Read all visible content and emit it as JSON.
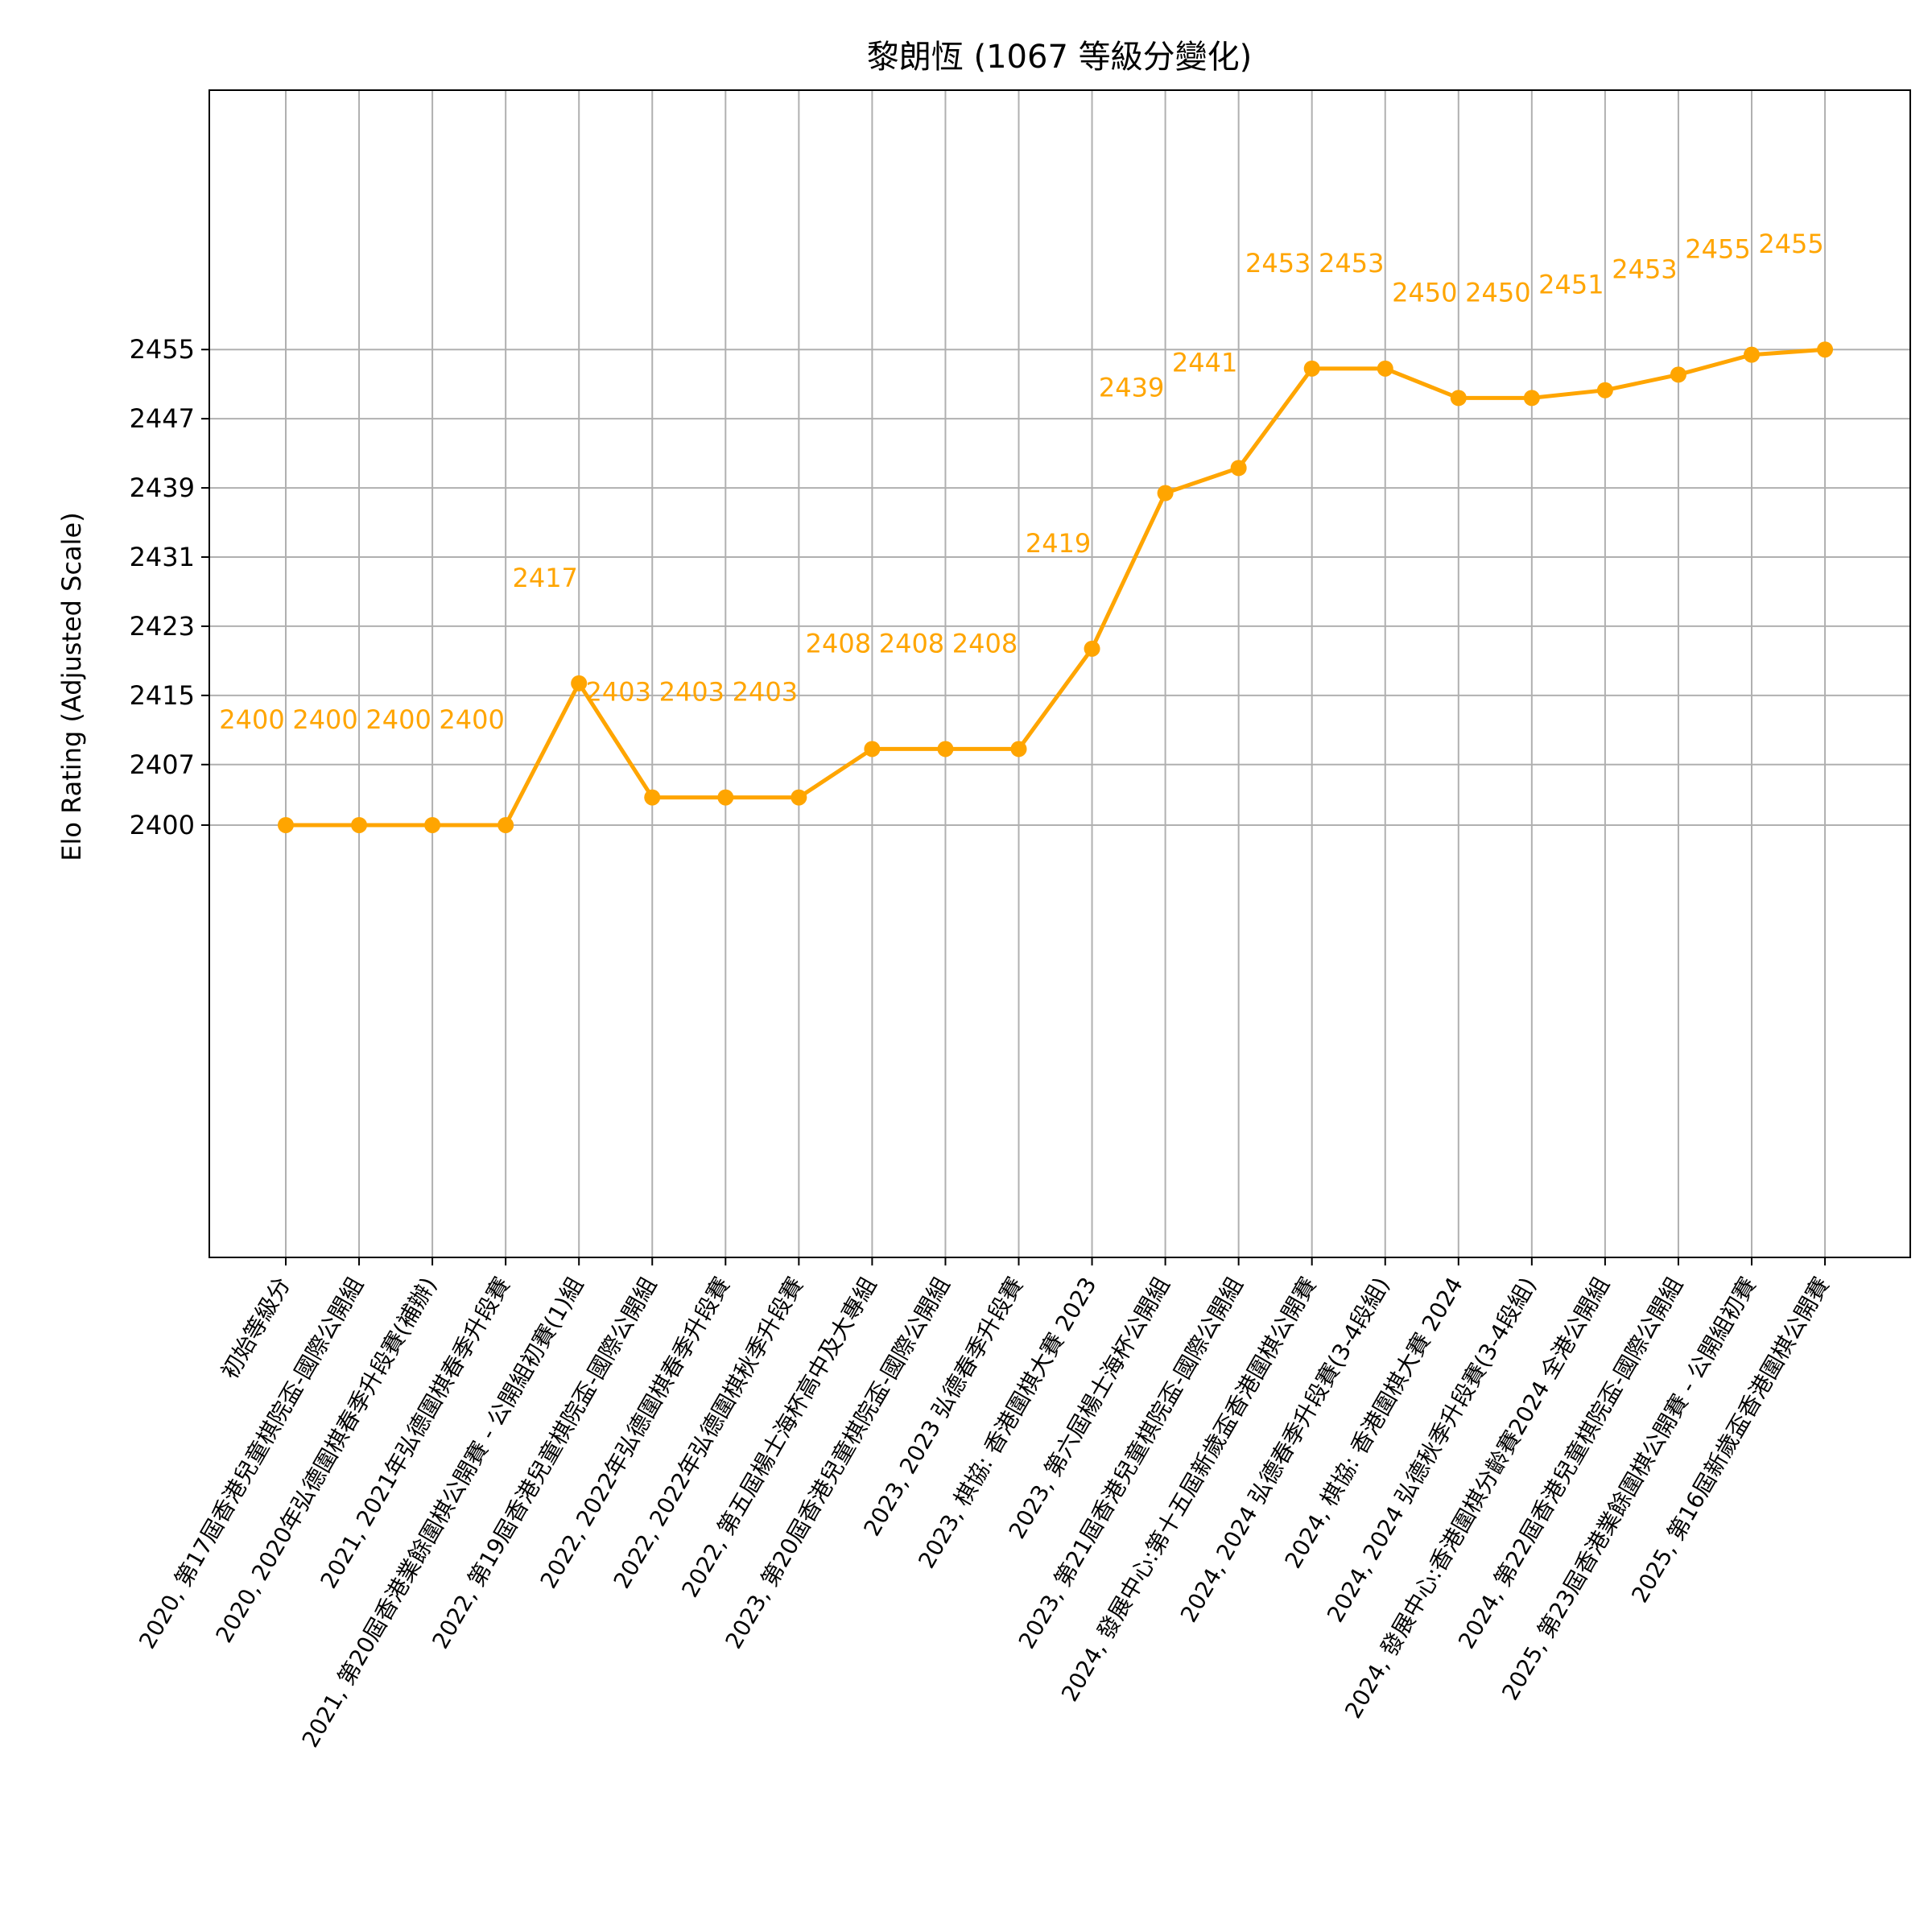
{
  "chart_data": {
    "type": "line",
    "title": "黎朗恆 (1067 等級分變化)",
    "xlabel": "",
    "ylabel": "Elo Rating (Adjusted Scale)",
    "ylim": [
      2350,
      2485
    ],
    "yticks": [
      2400,
      2407,
      2415,
      2423,
      2431,
      2439,
      2447,
      2455
    ],
    "grid": true,
    "line_color": "#FFA500",
    "categories": [
      "初始等級分",
      "2020, 第17屆香港兒童棋院盃-國際公開組",
      "2020, 2020年弘德圍棋春季升段賽(補辦)",
      "2021, 2021年弘德圍棋春季升段賽",
      "2021, 第20屆香港業餘圍棋公開賽 - 公開組初賽(1)組",
      "2022, 第19屆香港兒童棋院盃-國際公開組",
      "2022, 2022年弘德圍棋春季升段賽",
      "2022, 2022年弘德圍棋秋季升段賽",
      "2022, 第五屆楊士海杯高中及大專組",
      "2023, 第20屆香港兒童棋院盃-國際公開組",
      "2023, 2023 弘德春季升段賽",
      "2023, 棋協: 香港圍棋大賽 2023",
      "2023, 第六屆楊士海杯公開組",
      "2023, 第21屆香港兒童棋院盃-國際公開組",
      "2024, 發展中心:第十五屆新歲盃香港圍棋公開賽",
      "2024, 2024 弘德春季升段賽(3-4段組)",
      "2024, 棋協: 香港圍棋大賽 2024",
      "2024, 2024 弘德秋季升段賽(3-4段組)",
      "2024, 發展中心:香港圍棋分齡賽2024 全港公開組",
      "2024, 第22屆香港兒童棋院盃-國際公開組",
      "2025, 第23屆香港業餘圍棋公開賽 - 公開組初賽",
      "2025, 第16屆新歲盃香港圍棋公開賽"
    ],
    "series": [
      {
        "values": [
          2400,
          2400,
          2400,
          2400,
          2417,
          2403,
          2403,
          2403,
          2408,
          2408,
          2408,
          2419,
          2439,
          2441,
          2453,
          2453,
          2450,
          2450,
          2451,
          2453,
          2455,
          2455
        ]
      }
    ],
    "point_positions": [
      2400,
      2400,
      2400,
      2400,
      2416.4,
      2403.2,
      2403.2,
      2403.2,
      2408.8,
      2408.8,
      2408.8,
      2420.4,
      2438.4,
      2441.3,
      2452.8,
      2452.8,
      2449.4,
      2449.4,
      2450.3,
      2452.1,
      2454.4,
      2455
    ]
  }
}
